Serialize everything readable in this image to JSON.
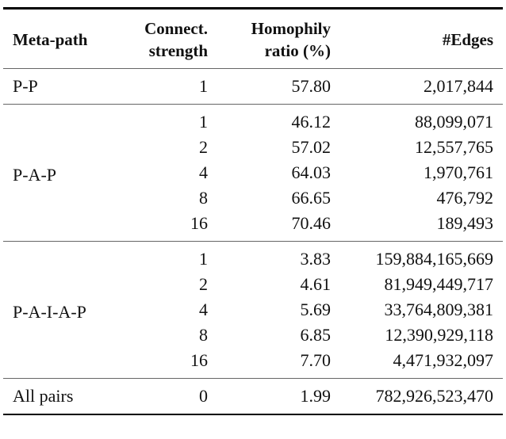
{
  "table": {
    "headers": [
      {
        "line1": "Meta-path",
        "line2": ""
      },
      {
        "line1": "Connect.",
        "line2": "strength"
      },
      {
        "line1": "Homophily",
        "line2": "ratio (%)"
      },
      {
        "line1": "#Edges",
        "line2": ""
      }
    ],
    "groups": [
      {
        "meta_path": "P-P",
        "rows": [
          {
            "strength": "1",
            "homophily": "57.80",
            "edges": "2,017,844"
          }
        ]
      },
      {
        "meta_path": "P-A-P",
        "rows": [
          {
            "strength": "1",
            "homophily": "46.12",
            "edges": "88,099,071"
          },
          {
            "strength": "2",
            "homophily": "57.02",
            "edges": "12,557,765"
          },
          {
            "strength": "4",
            "homophily": "64.03",
            "edges": "1,970,761"
          },
          {
            "strength": "8",
            "homophily": "66.65",
            "edges": "476,792"
          },
          {
            "strength": "16",
            "homophily": "70.46",
            "edges": "189,493"
          }
        ]
      },
      {
        "meta_path": "P-A-I-A-P",
        "rows": [
          {
            "strength": "1",
            "homophily": "3.83",
            "edges": "159,884,165,669"
          },
          {
            "strength": "2",
            "homophily": "4.61",
            "edges": "81,949,449,717"
          },
          {
            "strength": "4",
            "homophily": "5.69",
            "edges": "33,764,809,381"
          },
          {
            "strength": "8",
            "homophily": "6.85",
            "edges": "12,390,929,118"
          },
          {
            "strength": "16",
            "homophily": "7.70",
            "edges": "4,471,932,097"
          }
        ]
      },
      {
        "meta_path": "All pairs",
        "rows": [
          {
            "strength": "0",
            "homophily": "1.99",
            "edges": "782,926,523,470"
          }
        ]
      }
    ]
  }
}
